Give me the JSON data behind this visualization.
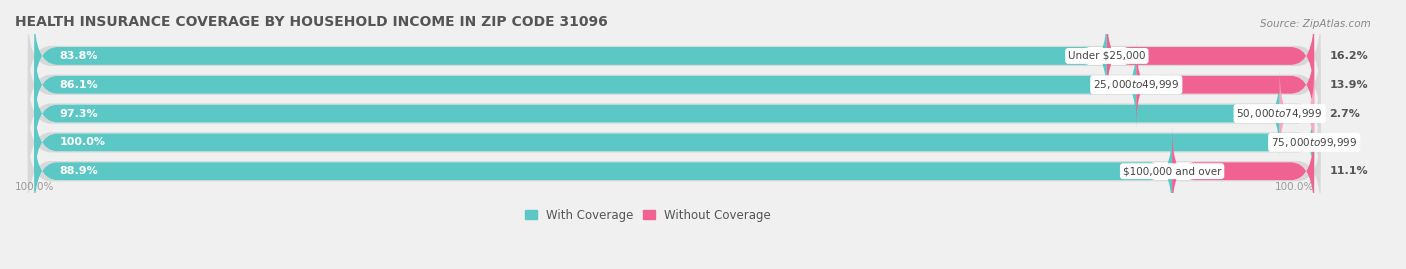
{
  "title": "HEALTH INSURANCE COVERAGE BY HOUSEHOLD INCOME IN ZIP CODE 31096",
  "source": "Source: ZipAtlas.com",
  "categories": [
    "Under $25,000",
    "$25,000 to $49,999",
    "$50,000 to $74,999",
    "$75,000 to $99,999",
    "$100,000 and over"
  ],
  "with_coverage": [
    83.8,
    86.1,
    97.3,
    100.0,
    88.9
  ],
  "without_coverage": [
    16.2,
    13.9,
    2.7,
    0.0,
    11.1
  ],
  "color_with": "#5BC8C5",
  "color_without": "#F06292",
  "color_without_light": "#F8A8C0",
  "bg_color": "#F0F0F0",
  "bar_bg_color": "#FFFFFF",
  "bar_height": 0.62,
  "title_fontsize": 10,
  "label_fontsize": 8.0,
  "tick_fontsize": 8,
  "legend_fontsize": 8.5
}
